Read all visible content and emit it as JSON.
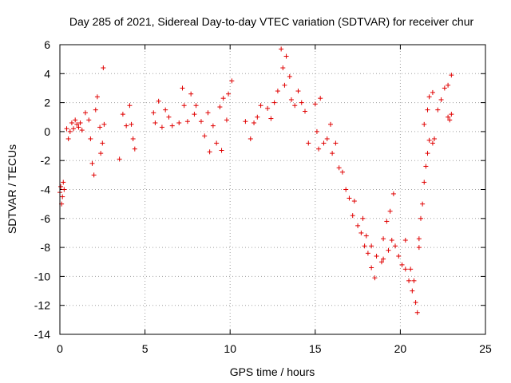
{
  "chart_data": {
    "type": "scatter",
    "title": "Day 285 of 2021, Sidereal Day-to-day VTEC variation (SDTVAR) for receiver chur",
    "xlabel": "GPS time / hours",
    "ylabel": "SDTVAR / TECUs",
    "xlim": [
      0,
      25
    ],
    "ylim": [
      -14,
      6
    ],
    "xticks": [
      0,
      5,
      10,
      15,
      20,
      25
    ],
    "yticks": [
      -14,
      -12,
      -10,
      -8,
      -6,
      -4,
      -2,
      0,
      2,
      4,
      6
    ],
    "grid": true,
    "marker": "+",
    "color": "#e00000",
    "series": [
      {
        "name": "SDTVAR",
        "points": [
          [
            0.0,
            -4.2
          ],
          [
            0.05,
            -3.8
          ],
          [
            0.1,
            -5.0
          ],
          [
            0.15,
            -4.5
          ],
          [
            0.2,
            -3.5
          ],
          [
            0.25,
            -4.0
          ],
          [
            0.4,
            0.2
          ],
          [
            0.5,
            -0.5
          ],
          [
            0.6,
            0.0
          ],
          [
            0.7,
            0.6
          ],
          [
            0.8,
            0.2
          ],
          [
            0.9,
            0.8
          ],
          [
            1.0,
            0.5
          ],
          [
            1.1,
            0.3
          ],
          [
            1.2,
            0.6
          ],
          [
            1.3,
            0.1
          ],
          [
            1.5,
            1.3
          ],
          [
            1.7,
            0.8
          ],
          [
            1.8,
            -0.5
          ],
          [
            1.9,
            -2.2
          ],
          [
            2.0,
            -3.0
          ],
          [
            2.1,
            1.5
          ],
          [
            2.2,
            2.4
          ],
          [
            2.35,
            0.3
          ],
          [
            2.4,
            -1.5
          ],
          [
            2.5,
            -0.8
          ],
          [
            2.55,
            4.4
          ],
          [
            2.6,
            0.5
          ],
          [
            3.5,
            -1.9
          ],
          [
            3.7,
            1.2
          ],
          [
            3.9,
            0.4
          ],
          [
            4.1,
            1.8
          ],
          [
            4.2,
            0.5
          ],
          [
            4.3,
            -0.5
          ],
          [
            4.4,
            -1.2
          ],
          [
            5.5,
            1.3
          ],
          [
            5.6,
            0.6
          ],
          [
            5.8,
            2.1
          ],
          [
            6.0,
            0.3
          ],
          [
            6.2,
            1.5
          ],
          [
            6.4,
            1.0
          ],
          [
            6.6,
            0.4
          ],
          [
            7.0,
            0.6
          ],
          [
            7.2,
            3.0
          ],
          [
            7.3,
            1.8
          ],
          [
            7.5,
            0.7
          ],
          [
            7.7,
            2.6
          ],
          [
            7.9,
            1.2
          ],
          [
            8.0,
            1.8
          ],
          [
            8.3,
            0.7
          ],
          [
            8.5,
            -0.3
          ],
          [
            8.7,
            1.3
          ],
          [
            8.8,
            -1.4
          ],
          [
            9.0,
            0.4
          ],
          [
            9.2,
            -0.8
          ],
          [
            9.4,
            1.7
          ],
          [
            9.5,
            -1.3
          ],
          [
            9.6,
            2.3
          ],
          [
            9.8,
            0.8
          ],
          [
            9.9,
            2.6
          ],
          [
            10.1,
            3.5
          ],
          [
            10.9,
            0.7
          ],
          [
            11.2,
            -0.5
          ],
          [
            11.4,
            0.6
          ],
          [
            11.6,
            1.0
          ],
          [
            11.8,
            1.8
          ],
          [
            12.2,
            1.6
          ],
          [
            12.4,
            0.9
          ],
          [
            12.6,
            2.0
          ],
          [
            12.8,
            2.8
          ],
          [
            13.0,
            5.7
          ],
          [
            13.1,
            4.4
          ],
          [
            13.2,
            3.2
          ],
          [
            13.3,
            5.2
          ],
          [
            13.5,
            3.8
          ],
          [
            13.6,
            2.2
          ],
          [
            13.8,
            1.8
          ],
          [
            14.0,
            2.8
          ],
          [
            14.2,
            2.0
          ],
          [
            14.4,
            1.4
          ],
          [
            14.6,
            -0.8
          ],
          [
            15.0,
            1.9
          ],
          [
            15.1,
            0.0
          ],
          [
            15.2,
            -1.2
          ],
          [
            15.3,
            2.3
          ],
          [
            15.5,
            -0.8
          ],
          [
            15.7,
            -0.5
          ],
          [
            15.9,
            0.5
          ],
          [
            16.0,
            -1.5
          ],
          [
            16.2,
            -0.8
          ],
          [
            16.4,
            -2.5
          ],
          [
            16.6,
            -2.8
          ],
          [
            16.8,
            -4.0
          ],
          [
            17.0,
            -4.6
          ],
          [
            17.2,
            -5.8
          ],
          [
            17.3,
            -4.8
          ],
          [
            17.5,
            -6.5
          ],
          [
            17.7,
            -7.0
          ],
          [
            17.9,
            -7.9
          ],
          [
            18.1,
            -8.4
          ],
          [
            18.3,
            -9.4
          ],
          [
            18.5,
            -10.1
          ],
          [
            17.8,
            -6.0
          ],
          [
            18.0,
            -7.2
          ],
          [
            18.3,
            -7.9
          ],
          [
            18.6,
            -8.6
          ],
          [
            18.9,
            -9.0
          ],
          [
            19.0,
            -7.4
          ],
          [
            19.2,
            -6.2
          ],
          [
            19.4,
            -5.5
          ],
          [
            19.6,
            -4.3
          ],
          [
            19.0,
            -8.8
          ],
          [
            19.3,
            -8.2
          ],
          [
            19.5,
            -7.5
          ],
          [
            19.7,
            -7.9
          ],
          [
            19.9,
            -8.6
          ],
          [
            20.1,
            -9.2
          ],
          [
            20.3,
            -9.5
          ],
          [
            20.5,
            -10.3
          ],
          [
            20.7,
            -11.0
          ],
          [
            20.9,
            -11.8
          ],
          [
            21.0,
            -12.5
          ],
          [
            20.3,
            -7.5
          ],
          [
            20.6,
            -9.5
          ],
          [
            20.8,
            -10.3
          ],
          [
            21.1,
            -8.0
          ],
          [
            21.1,
            -7.4
          ],
          [
            21.2,
            -6.0
          ],
          [
            21.3,
            -5.0
          ],
          [
            21.4,
            -3.5
          ],
          [
            21.5,
            -2.4
          ],
          [
            21.6,
            -1.5
          ],
          [
            21.7,
            -0.6
          ],
          [
            21.9,
            -0.8
          ],
          [
            22.0,
            -0.5
          ],
          [
            21.4,
            0.5
          ],
          [
            21.6,
            1.5
          ],
          [
            21.7,
            2.4
          ],
          [
            21.9,
            2.7
          ],
          [
            22.2,
            1.5
          ],
          [
            22.4,
            2.2
          ],
          [
            22.6,
            3.0
          ],
          [
            22.8,
            3.2
          ],
          [
            23.0,
            3.9
          ],
          [
            22.8,
            1.0
          ],
          [
            22.9,
            0.8
          ],
          [
            23.0,
            1.2
          ]
        ]
      }
    ]
  }
}
